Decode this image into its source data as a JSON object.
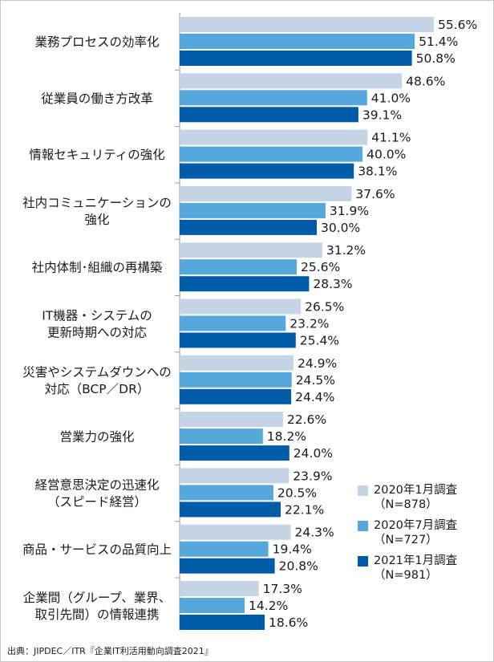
{
  "chart_data": {
    "type": "bar",
    "orientation": "horizontal",
    "categories": [
      [
        "業務プロセスの効率化"
      ],
      [
        "従業員の働き方改革"
      ],
      [
        "情報セキュリティの強化"
      ],
      [
        "社内コミュニケーションの",
        "強化"
      ],
      [
        "社内体制･組織の再構築"
      ],
      [
        "IT機器・システムの",
        "更新時期への対応"
      ],
      [
        "災害やシステムダウンへの",
        "対応（BCP／DR）"
      ],
      [
        "営業力の強化"
      ],
      [
        "経営意思決定の迅速化",
        "（スピード経営）"
      ],
      [
        "商品・サービスの品質向上"
      ],
      [
        "企業間（グループ、業界、",
        "取引先間）の情報連携"
      ]
    ],
    "series": [
      {
        "name": "2020年1月調査\n（N=878）",
        "color": "#c5d5e6",
        "values": [
          55.6,
          48.6,
          41.1,
          37.6,
          31.2,
          26.5,
          24.9,
          22.6,
          23.9,
          24.3,
          17.3
        ]
      },
      {
        "name": "2020年7月調査\n（N=727）",
        "color": "#56a8dc",
        "values": [
          51.4,
          41.0,
          40.0,
          31.9,
          25.6,
          23.2,
          24.5,
          18.2,
          20.5,
          19.4,
          14.2
        ]
      },
      {
        "name": "2021年1月調査\n（N=981）",
        "color": "#005ba8",
        "values": [
          50.8,
          39.1,
          38.1,
          30.0,
          28.3,
          25.4,
          24.4,
          24.0,
          22.1,
          20.8,
          18.6
        ]
      }
    ],
    "value_suffix": "%",
    "xlim": [
      0,
      100
    ],
    "legend_position": "bottom-right",
    "grid": false
  },
  "source": "出典：JIPDEC／ITR『企業IT利活用動向調査2021』"
}
